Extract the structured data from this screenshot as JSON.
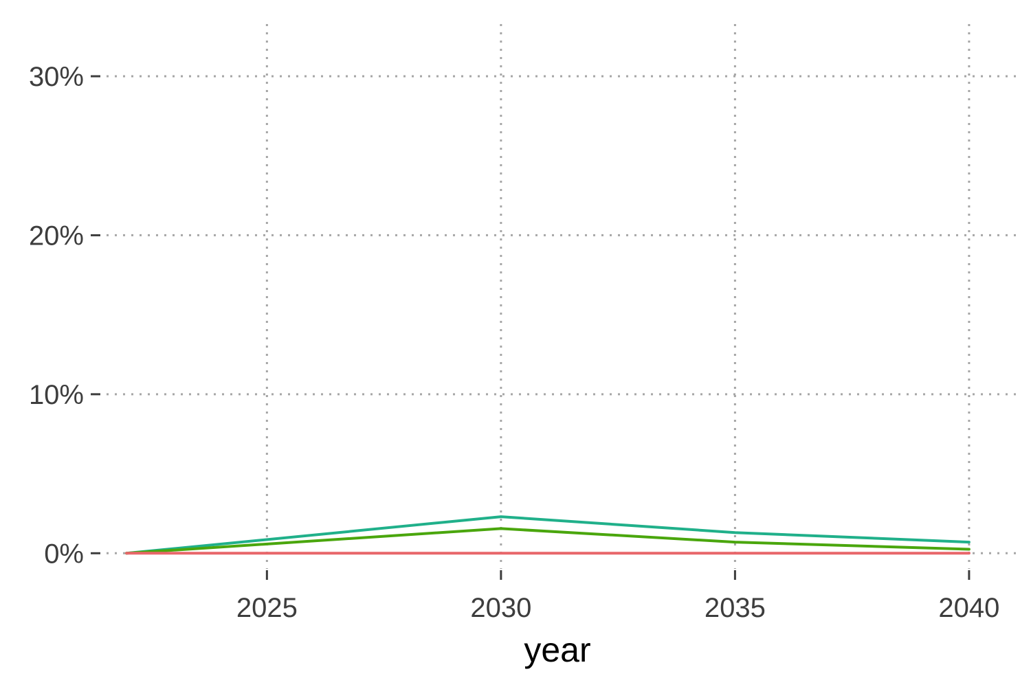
{
  "chart_data": {
    "type": "line",
    "title": "",
    "xlabel": "year",
    "ylabel": "",
    "x": [
      2022,
      2030,
      2035,
      2040
    ],
    "xlim": [
      2021.5,
      2041
    ],
    "xticks": [
      2025,
      2030,
      2035,
      2040
    ],
    "xtick_labels": [
      "2025",
      "2030",
      "2035",
      "2040"
    ],
    "ylim": [
      -0.015,
      0.335
    ],
    "yticks": [
      0,
      0.1,
      0.2,
      0.3
    ],
    "ytick_labels": [
      "0%",
      "10%",
      "20%",
      "30%"
    ],
    "grid": true,
    "legend": "none",
    "series": [
      {
        "color": "#20b08a",
        "values": [
          0.0,
          0.023,
          0.013,
          0.007
        ]
      },
      {
        "color": "#4aa60d",
        "values": [
          0.0,
          0.0155,
          0.007,
          0.0025
        ]
      },
      {
        "color": "#e8666a",
        "values": [
          0.0,
          0.0,
          0.0,
          0.0
        ]
      }
    ]
  }
}
